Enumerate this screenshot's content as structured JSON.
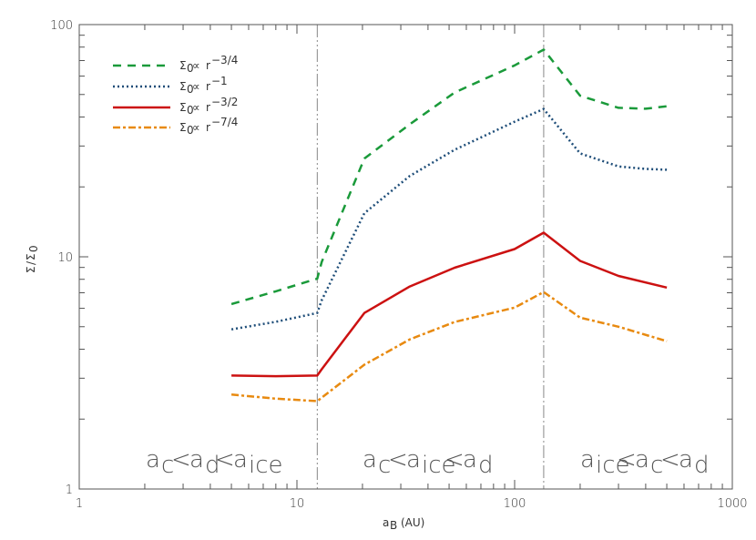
{
  "chart_data": {
    "type": "line",
    "title": "",
    "xlabel": "a_B (AU)",
    "ylabel": "Σ/Σ_0",
    "xscale": "log",
    "yscale": "log",
    "xlim": [
      1,
      1000
    ],
    "ylim": [
      1,
      100
    ],
    "x_ticks": [
      "1",
      "10",
      "100",
      "1000"
    ],
    "y_ticks": [
      "1",
      "10",
      "100"
    ],
    "grid": false,
    "legend_position": "upper left",
    "vertical_lines": [
      {
        "x": 12.4,
        "style": "dash-dot-dot",
        "color": "#888888"
      },
      {
        "x": 136,
        "style": "dash-dot",
        "color": "#888888"
      }
    ],
    "annotations": [
      {
        "text": "a_c < a_d < a_ice",
        "region": "left"
      },
      {
        "text": "a_c < a_ice < a_d",
        "region": "middle"
      },
      {
        "text": "a_ice < a_c < a_d",
        "region": "right"
      }
    ],
    "series": [
      {
        "name": "Σ0 ∝ r^-3/4",
        "color": "#1a9a3a",
        "style": "dashed",
        "x": [
          5,
          8,
          12.4,
          13,
          20.4,
          33,
          53,
          100,
          136,
          200,
          300,
          400,
          500
        ],
        "values": [
          6.26,
          7.1,
          8.05,
          9.5,
          26.5,
          37.2,
          51,
          66.7,
          78,
          49.4,
          43.8,
          43.4,
          44.5
        ]
      },
      {
        "name": "Σ0 ∝ r^-1",
        "color": "#1f4e79",
        "style": "dotted",
        "x": [
          5,
          8,
          12.4,
          13,
          20.4,
          33,
          53,
          100,
          136,
          200,
          300,
          400,
          500
        ],
        "values": [
          4.87,
          5.25,
          5.73,
          6.5,
          15.4,
          22.3,
          28.9,
          38.2,
          43.3,
          27.9,
          24.5,
          23.9,
          23.7
        ]
      },
      {
        "name": "Σ0 ∝ r^-3/2",
        "color": "#cc1111",
        "style": "solid",
        "x": [
          5,
          8,
          12.4,
          13,
          20.4,
          33,
          53,
          100,
          136,
          200,
          300,
          500
        ],
        "values": [
          3.08,
          3.06,
          3.08,
          3.28,
          5.73,
          7.45,
          8.97,
          10.8,
          12.7,
          9.6,
          8.27,
          7.37
        ]
      },
      {
        "name": "Σ0 ∝ r^-7/4",
        "color": "#e88a10",
        "style": "dash-dot",
        "x": [
          5,
          8,
          12.4,
          20.4,
          33,
          53,
          100,
          136,
          200,
          300,
          500
        ],
        "values": [
          2.55,
          2.45,
          2.39,
          3.43,
          4.41,
          5.24,
          6.04,
          7.05,
          5.47,
          5.0,
          4.33
        ]
      }
    ]
  },
  "legend": {
    "items": [
      {
        "sigma": "Σ",
        "sub": "0",
        "prop": "∝",
        "r": "r",
        "exp": "−3/4"
      },
      {
        "sigma": "Σ",
        "sub": "0",
        "prop": "∝",
        "r": "r",
        "exp": "−1"
      },
      {
        "sigma": "Σ",
        "sub": "0",
        "prop": "∝",
        "r": "r",
        "exp": "−3/2"
      },
      {
        "sigma": "Σ",
        "sub": "0",
        "prop": "∝",
        "r": "r",
        "exp": "−7/4"
      }
    ]
  },
  "axes": {
    "x_ticks": [
      "1",
      "10",
      "100",
      "1000"
    ],
    "y_ticks": [
      "1",
      "10",
      "100"
    ],
    "xlabel_main": "a",
    "xlabel_sub": "B",
    "xlabel_unit": "(AU)",
    "ylabel_num": "Σ",
    "ylabel_slash": "/",
    "ylabel_den": "Σ",
    "ylabel_den_sub": "0"
  },
  "regions": [
    {
      "a1": "a",
      "s1": "c",
      "lt1": "<",
      "a2": "a",
      "s2": "d",
      "lt2": "<",
      "a3": "a",
      "s3": "ice"
    },
    {
      "a1": "a",
      "s1": "c",
      "lt1": "<",
      "a2": "a",
      "s2": "ice",
      "lt2": "<",
      "a3": "a",
      "s3": "d"
    },
    {
      "a1": "a",
      "s1": "ice",
      "lt1": "<",
      "a2": "a",
      "s2": "c",
      "lt2": "<",
      "a3": "a",
      "s3": "d"
    }
  ]
}
